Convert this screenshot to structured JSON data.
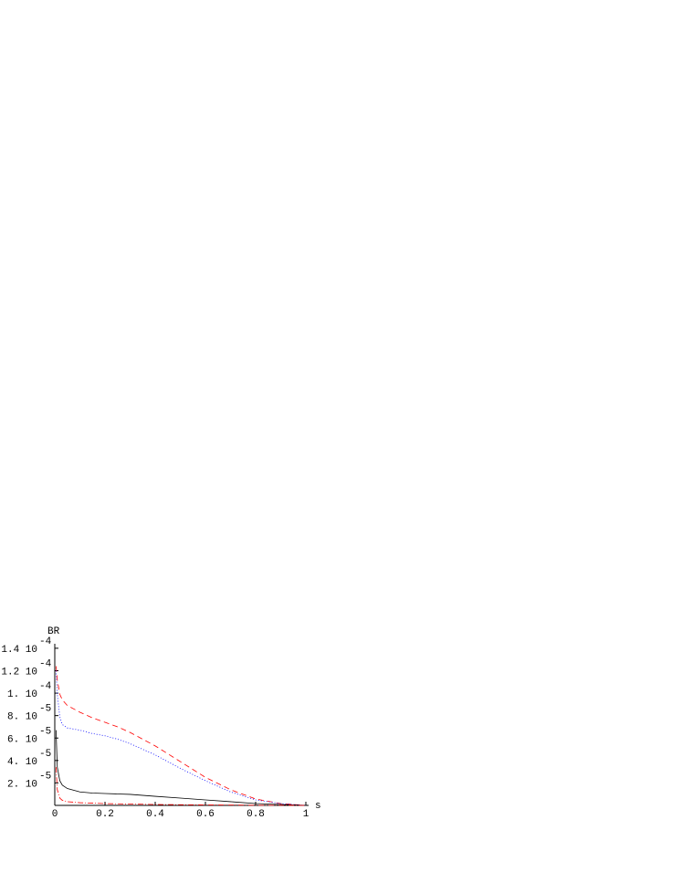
{
  "chart_data": {
    "type": "line",
    "xlabel": "s",
    "ylabel": "BR",
    "xlim": [
      0,
      1
    ],
    "ylim": [
      0,
      0.000144
    ],
    "xticks": [
      0,
      0.2,
      0.4,
      0.6,
      0.8,
      1
    ],
    "yticks": [
      {
        "value": 2e-05,
        "label": "2. 10",
        "power": "-5"
      },
      {
        "value": 4e-05,
        "label": "4. 10",
        "power": "-5"
      },
      {
        "value": 6e-05,
        "label": "6. 10",
        "power": "-5"
      },
      {
        "value": 8e-05,
        "label": "8. 10",
        "power": "-5"
      },
      {
        "value": 0.0001,
        "label": "1. 10",
        "power": "-4"
      },
      {
        "value": 0.00012,
        "label": "1.2 10",
        "power": "-4"
      },
      {
        "value": 0.00014,
        "label": "1.4 10",
        "power": "-4"
      }
    ],
    "x": [
      0.005,
      0.01,
      0.02,
      0.03,
      0.05,
      0.1,
      0.15,
      0.2,
      0.25,
      0.3,
      0.4,
      0.5,
      0.6,
      0.7,
      0.8,
      0.9,
      1
    ],
    "series": [
      {
        "color": "#ff0000",
        "dash": "6,4",
        "values": [
          0.000124,
          0.000112,
          9.9e-05,
          9.4e-05,
          8.9e-05,
          8.3e-05,
          7.8e-05,
          7.4e-05,
          7e-05,
          6.5e-05,
          5.3e-05,
          3.9e-05,
          2.5e-05,
          1.4e-05,
          5.7e-06,
          1.6e-06,
          0
        ]
      },
      {
        "color": "#0000ff",
        "dash": "1,2",
        "values": [
          0.00012,
          9.9e-05,
          7.9e-05,
          7.2e-05,
          6.9e-05,
          6.7e-05,
          6.4e-05,
          6.2e-05,
          5.9e-05,
          5.5e-05,
          4.5e-05,
          3.3e-05,
          2.2e-05,
          1.2e-05,
          4.9e-06,
          1.6e-06,
          0
        ]
      },
      {
        "color": "#000000",
        "dash": "none",
        "values": [
          6.7e-05,
          3.4e-05,
          2.2e-05,
          1.8e-05,
          1.5e-05,
          1.2e-05,
          1.1e-05,
          1.06e-05,
          1.02e-05,
          9.8e-06,
          8.1e-06,
          6.5e-06,
          4.9e-06,
          3.3e-06,
          1.6e-06,
          8e-07,
          0
        ]
      },
      {
        "color": "#ff0000",
        "dash": "6,2,1,2",
        "values": [
          3.4e-05,
          1.4e-05,
          6.5e-06,
          4.5e-06,
          3.3e-06,
          2.4e-06,
          2e-06,
          1.6e-06,
          1.4e-06,
          1.2e-06,
          8e-07,
          6e-07,
          4e-07,
          3e-07,
          1e-07,
          1e-07,
          0
        ]
      }
    ]
  }
}
